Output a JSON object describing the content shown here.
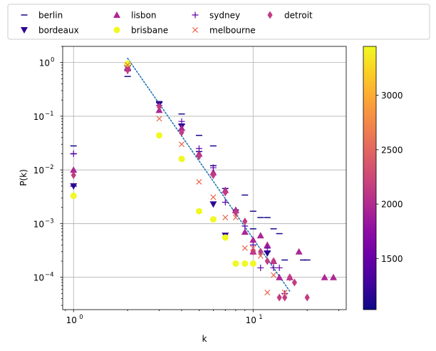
{
  "chart_data": {
    "type": "scatter",
    "xlabel": "k",
    "ylabel": "P(k)",
    "xscale": "log",
    "yscale": "log",
    "xlim": [
      0.87,
      33
    ],
    "ylim": [
      2.5e-05,
      2
    ],
    "grid": true,
    "legend_placement": "top, above plot, 5 columns",
    "x_ticks": [
      {
        "value": 1,
        "label": "10",
        "exp": "0"
      },
      {
        "value": 10,
        "label": "10",
        "exp": "1"
      }
    ],
    "y_ticks": [
      {
        "value": 1,
        "label": "10",
        "exp": "0"
      },
      {
        "value": 0.1,
        "label": "10",
        "exp": "−1"
      },
      {
        "value": 0.01,
        "label": "10",
        "exp": "−2"
      },
      {
        "value": 0.001,
        "label": "10",
        "exp": "−3"
      },
      {
        "value": 0.0001,
        "label": "10",
        "exp": "−4"
      }
    ],
    "colorbar": {
      "colormap": "plasma",
      "min": 1030,
      "max": 3450,
      "ticks": [
        {
          "value": 1500,
          "label": "1500"
        },
        {
          "value": 2000,
          "label": "2000"
        },
        {
          "value": 2500,
          "label": "2500"
        },
        {
          "value": 3000,
          "label": "3000"
        }
      ]
    },
    "fit_line": {
      "style": "dotted",
      "color": "#1f77b4",
      "x": [
        2,
        16
      ],
      "y": [
        1.2,
        5.5e-05
      ]
    },
    "series": [
      {
        "name": "berlin",
        "marker": "hline",
        "color": "#13078c",
        "points": [
          [
            1,
            0.028
          ],
          [
            1,
            0.02
          ],
          [
            1,
            0.005
          ],
          [
            2,
            0.55
          ],
          [
            2,
            0.75
          ],
          [
            3,
            0.18
          ],
          [
            3,
            0.18
          ],
          [
            4,
            0.11
          ],
          [
            4,
            0.07
          ],
          [
            4,
            0.055
          ],
          [
            5,
            0.044
          ],
          [
            5,
            0.022
          ],
          [
            6,
            0.028
          ],
          [
            6,
            0.012
          ],
          [
            7,
            0.0045
          ],
          [
            8,
            0.0018
          ],
          [
            9,
            0.0034
          ],
          [
            10,
            0.0017
          ],
          [
            10,
            0.0008
          ],
          [
            11,
            0.0013
          ],
          [
            12,
            0.0013
          ],
          [
            12,
            0.0003
          ],
          [
            13,
            0.0008
          ],
          [
            14,
            0.00065
          ],
          [
            15,
            0.00021
          ],
          [
            19,
            0.00021
          ],
          [
            20,
            0.00021
          ]
        ]
      },
      {
        "name": "bordeaux",
        "marker": "triangle-down",
        "color": "#2c0594",
        "points": [
          [
            1,
            0.005
          ],
          [
            2,
            0.8
          ],
          [
            3,
            0.17
          ],
          [
            4,
            0.065
          ],
          [
            6,
            0.0023
          ],
          [
            7,
            0.0006
          ],
          [
            12,
            0.00028
          ]
        ]
      },
      {
        "name": "lisbon",
        "marker": "triangle-up",
        "color": "#ac2694",
        "points": [
          [
            1,
            0.01
          ],
          [
            2,
            0.8
          ],
          [
            3,
            0.13
          ],
          [
            4,
            0.06
          ],
          [
            5,
            0.02
          ],
          [
            6,
            0.009
          ],
          [
            7,
            0.0042
          ],
          [
            8,
            0.0018
          ],
          [
            9,
            0.0007
          ],
          [
            10,
            0.0005
          ],
          [
            10,
            0.0003
          ],
          [
            11,
            0.0006
          ],
          [
            12,
            0.0004
          ],
          [
            13,
            0.0002
          ],
          [
            14,
            0.0001
          ],
          [
            16,
            0.0001
          ],
          [
            18,
            0.0003
          ],
          [
            25,
            0.0001
          ],
          [
            28,
            0.0001
          ]
        ]
      },
      {
        "name": "brisbane",
        "marker": "circle",
        "color": "#f0f921",
        "points": [
          [
            1,
            0.0033
          ],
          [
            2,
            0.95
          ],
          [
            3,
            0.044
          ],
          [
            4,
            0.016
          ],
          [
            5,
            0.0017
          ],
          [
            6,
            0.0012
          ],
          [
            7,
            0.00055
          ],
          [
            8,
            0.00018
          ],
          [
            9,
            0.00018
          ],
          [
            10,
            0.00018
          ]
        ]
      },
      {
        "name": "sydney",
        "marker": "plus",
        "color": "#5c01a6",
        "points": [
          [
            1,
            0.02
          ],
          [
            2,
            0.7
          ],
          [
            3,
            0.16
          ],
          [
            4,
            0.08
          ],
          [
            5,
            0.025
          ],
          [
            6,
            0.011
          ],
          [
            7,
            0.0025
          ],
          [
            8,
            0.0016
          ],
          [
            9,
            0.0009
          ],
          [
            10,
            0.0004
          ],
          [
            11,
            0.00015
          ],
          [
            12,
            0.00035
          ],
          [
            13,
            0.00015
          ],
          [
            14,
            0.00015
          ],
          [
            15,
            5e-05
          ]
        ]
      },
      {
        "name": "melbourne",
        "marker": "x",
        "color": "#e8664b",
        "points": [
          [
            2,
            0.9
          ],
          [
            3,
            0.09
          ],
          [
            4,
            0.03
          ],
          [
            5,
            0.006
          ],
          [
            6,
            0.0031
          ],
          [
            7,
            0.0013
          ],
          [
            8,
            0.0013
          ],
          [
            9,
            0.00035
          ],
          [
            10,
            0.00035
          ],
          [
            11,
            0.00025
          ],
          [
            12,
            5.2e-05
          ],
          [
            13,
            0.00011
          ],
          [
            15,
            5.2e-05
          ]
        ]
      },
      {
        "name": "detroit",
        "marker": "diamond",
        "color": "#c23c81",
        "points": [
          [
            1,
            0.008
          ],
          [
            2,
            0.72
          ],
          [
            3,
            0.15
          ],
          [
            4,
            0.05
          ],
          [
            5,
            0.018
          ],
          [
            6,
            0.008
          ],
          [
            7,
            0.0038
          ],
          [
            8,
            0.0016
          ],
          [
            9,
            0.0011
          ],
          [
            10,
            0.0003
          ],
          [
            11,
            0.0003
          ],
          [
            12,
            0.0002
          ],
          [
            13,
            0.0002
          ],
          [
            14,
            4.2e-05
          ],
          [
            15,
            4.2e-05
          ],
          [
            16,
            0.0001
          ],
          [
            17,
            8e-05
          ],
          [
            20,
            4.2e-05
          ]
        ]
      }
    ]
  }
}
